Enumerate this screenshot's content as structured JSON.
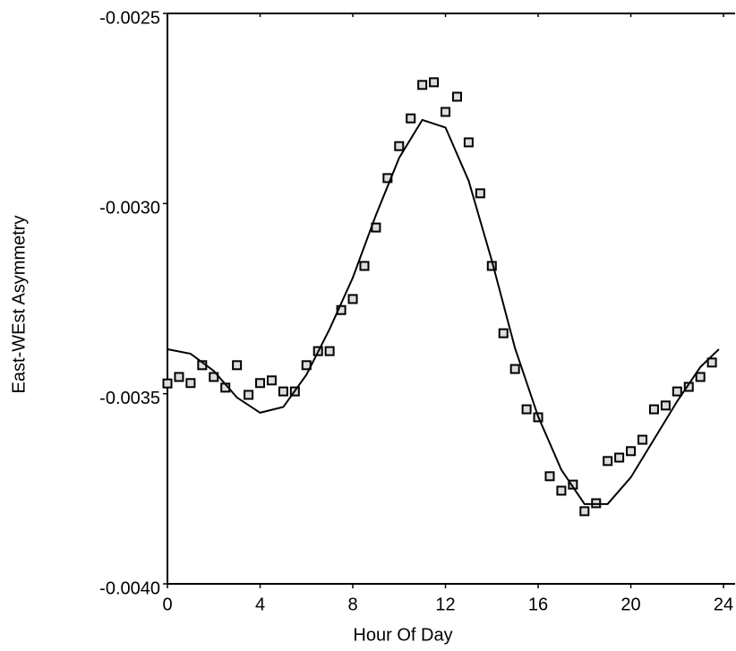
{
  "chart_data": {
    "type": "scatter",
    "x_label": "Hour Of Day",
    "y_label": "East-WEst Asymmetry",
    "xlim": [
      0,
      24.5
    ],
    "xticks": [
      0,
      4,
      8,
      12,
      16,
      20,
      24
    ],
    "ylim": [
      -0.004,
      -0.0025
    ],
    "yticks": [
      {
        "value": -0.004,
        "label": "-0.0040"
      },
      -0.0035,
      {
        "value": -0.003,
        "label": "-0.0030"
      },
      -0.0025
    ],
    "series": [
      {
        "mark": "square",
        "color": "#000000",
        "x": [
          0,
          0.5,
          1,
          1.5,
          2,
          2.5,
          3,
          3.5,
          4,
          4.5,
          5,
          5.5,
          6,
          6.5,
          7,
          7.5,
          8,
          8.5,
          9,
          9.5,
          10,
          10.5,
          11,
          11.5,
          12,
          12.5,
          13,
          13.5,
          14,
          14.5,
          15,
          15.5,
          16,
          16.5,
          17,
          17.5,
          18,
          18.5,
          19,
          19.5,
          20,
          20.5,
          21,
          21.5,
          22,
          22.5,
          23,
          23.5
        ],
        "values": [
          -0.003473,
          -0.003456,
          -0.003472,
          -0.003425,
          -0.003456,
          -0.003484,
          -0.003425,
          -0.003503,
          -0.003472,
          -0.003465,
          -0.003494,
          -0.003494,
          -0.003425,
          -0.003388,
          -0.003388,
          -0.00328,
          -0.003251,
          -0.003164,
          -0.003063,
          -0.002933,
          -0.002849,
          -0.002776,
          -0.002688,
          -0.002681,
          -0.002759,
          -0.002719,
          -0.002839,
          -0.002973,
          -0.003164,
          -0.003341,
          -0.003435,
          -0.003541,
          -0.003562,
          -0.003717,
          -0.003755,
          -0.003739,
          -0.003809,
          -0.003788,
          -0.003677,
          -0.003668,
          -0.003651,
          -0.003621,
          -0.003541,
          -0.003531,
          -0.003494,
          -0.003482,
          -0.003456,
          -0.003418
        ]
      },
      {
        "mark": "line",
        "color": "#000000",
        "x": [
          0,
          1,
          2,
          3,
          4,
          5,
          6,
          7,
          8,
          9,
          10,
          11,
          12,
          13,
          14,
          15,
          16,
          17,
          18,
          19,
          20,
          21,
          22,
          23,
          23.8
        ],
        "values": [
          -0.003383,
          -0.003395,
          -0.00344,
          -0.00351,
          -0.00355,
          -0.003535,
          -0.00345,
          -0.00333,
          -0.003195,
          -0.00303,
          -0.00288,
          -0.00278,
          -0.0028,
          -0.00294,
          -0.00315,
          -0.00338,
          -0.00356,
          -0.0037,
          -0.00379,
          -0.00379,
          -0.00372,
          -0.00362,
          -0.00352,
          -0.00343,
          -0.003383
        ]
      }
    ]
  }
}
